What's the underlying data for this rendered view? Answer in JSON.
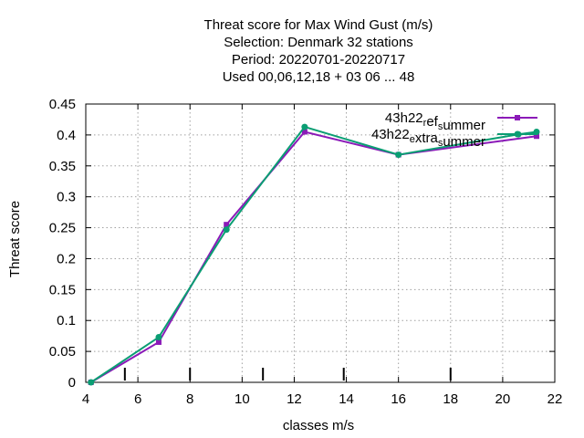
{
  "title_lines": [
    "Threat score  for Max Wind Gust (m/s)",
    "Selection: Denmark     32 stations",
    "Period: 20220701-20220717",
    "Used  00,06,12,18  + 03 06 ... 48"
  ],
  "chart_data": {
    "type": "line",
    "xlabel": "classes m/s",
    "ylabel": "Threat score",
    "xlim": [
      4,
      22
    ],
    "ylim": [
      0,
      0.45
    ],
    "xticks": [
      4,
      6,
      8,
      10,
      12,
      14,
      16,
      18,
      20,
      22
    ],
    "xtick_labels": [
      "4",
      "6",
      "8",
      "10",
      "12",
      "14",
      "16",
      "18",
      "20",
      "22"
    ],
    "yticks": [
      0,
      0.05,
      0.1,
      0.15,
      0.2,
      0.25,
      0.3,
      0.35,
      0.4,
      0.45
    ],
    "ytick_labels": [
      "0",
      "0.05",
      "0.1",
      "0.15",
      "0.2",
      "0.25",
      "0.3",
      "0.35",
      "0.4",
      "0.45"
    ],
    "grid": true,
    "legend_position": "top-right",
    "class_markers_x": [
      5.5,
      8,
      10.8,
      13.9,
      18
    ],
    "series": [
      {
        "name_parts": [
          "43h22",
          "r",
          "ef",
          "s",
          "ummer"
        ],
        "color": "#8b1ab8",
        "x": [
          4.2,
          6.8,
          9.4,
          12.4,
          16.0,
          21.3
        ],
        "y": [
          0.0,
          0.065,
          0.255,
          0.405,
          0.368,
          0.398
        ]
      },
      {
        "name_parts": [
          "43h22",
          "e",
          "xtra",
          "s",
          "ummer"
        ],
        "color": "#0a9e73",
        "x": [
          4.2,
          6.8,
          9.4,
          12.4,
          16.0,
          20.6,
          21.3
        ],
        "y": [
          0.0,
          0.073,
          0.247,
          0.413,
          0.368,
          0.401,
          0.405
        ]
      }
    ]
  }
}
